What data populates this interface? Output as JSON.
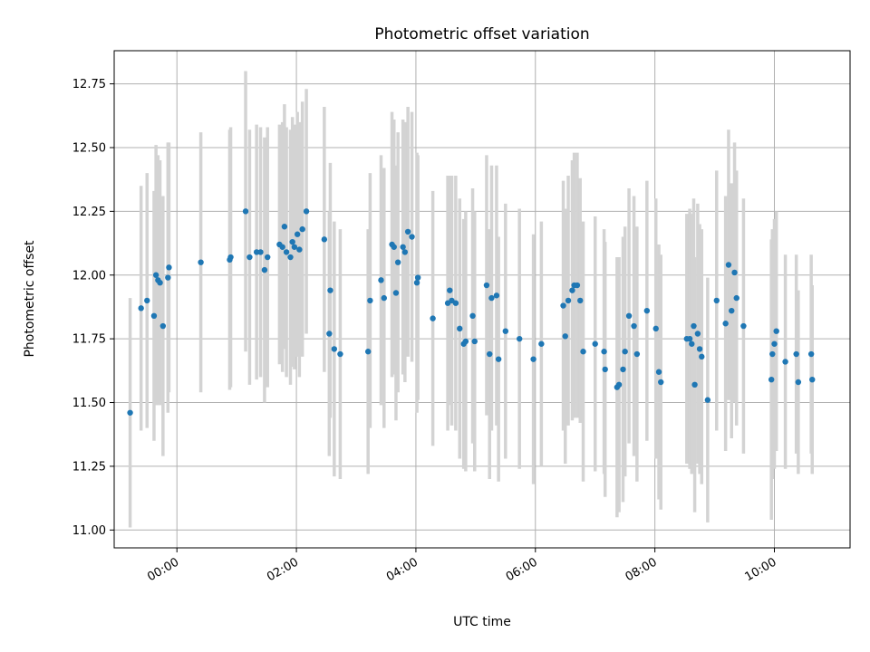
{
  "chart_data": {
    "type": "scatter",
    "title": "Photometric offset variation",
    "xlabel": "UTC time",
    "ylabel": "Photometric offset",
    "x_axis_type": "time",
    "xlim": [
      "-01:03",
      "11:16"
    ],
    "ylim": [
      10.93,
      12.88
    ],
    "x_tick_labels": [
      "00:00",
      "02:00",
      "04:00",
      "06:00",
      "08:00",
      "10:00"
    ],
    "y_ticks": [
      11.0,
      11.25,
      11.5,
      11.75,
      12.0,
      12.25,
      12.5,
      12.75
    ],
    "y_tick_labels": [
      "11.00",
      "11.25",
      "11.50",
      "11.75",
      "12.00",
      "12.25",
      "12.50",
      "12.75"
    ],
    "grid": true,
    "colors": {
      "points": "#1f77b4",
      "errorbars": "#d3d3d3",
      "grid": "#b0b0b0"
    },
    "points": [
      {
        "x": "-00:47",
        "y": 11.46,
        "err": 0.45
      },
      {
        "x": "-00:36",
        "y": 11.87,
        "err": 0.48
      },
      {
        "x": "-00:30",
        "y": 11.9,
        "err": 0.5
      },
      {
        "x": "-00:23",
        "y": 11.84,
        "err": 0.49
      },
      {
        "x": "-00:21",
        "y": 12.0,
        "err": 0.51
      },
      {
        "x": "-00:19",
        "y": 11.98,
        "err": 0.49
      },
      {
        "x": "-00:17",
        "y": 11.97,
        "err": 0.48
      },
      {
        "x": "-00:14",
        "y": 11.8,
        "err": 0.51
      },
      {
        "x": "-00:09",
        "y": 11.99,
        "err": 0.53
      },
      {
        "x": "-00:08",
        "y": 12.03,
        "err": 0.49
      },
      {
        "x": "00:24",
        "y": 12.05,
        "err": 0.51
      },
      {
        "x": "00:53",
        "y": 12.06,
        "err": 0.51
      },
      {
        "x": "00:54",
        "y": 12.07,
        "err": 0.51
      },
      {
        "x": "01:09",
        "y": 12.25,
        "err": 0.55
      },
      {
        "x": "01:13",
        "y": 12.07,
        "err": 0.5
      },
      {
        "x": "01:20",
        "y": 12.09,
        "err": 0.5
      },
      {
        "x": "01:24",
        "y": 12.09,
        "err": 0.49
      },
      {
        "x": "01:28",
        "y": 12.02,
        "err": 0.52
      },
      {
        "x": "01:31",
        "y": 12.07,
        "err": 0.51
      },
      {
        "x": "01:43",
        "y": 12.12,
        "err": 0.47
      },
      {
        "x": "01:46",
        "y": 12.11,
        "err": 0.49
      },
      {
        "x": "01:48",
        "y": 12.19,
        "err": 0.48
      },
      {
        "x": "01:50",
        "y": 12.09,
        "err": 0.49
      },
      {
        "x": "01:54",
        "y": 12.07,
        "err": 0.5
      },
      {
        "x": "01:56",
        "y": 12.13,
        "err": 0.49
      },
      {
        "x": "01:58",
        "y": 12.11,
        "err": 0.48
      },
      {
        "x": "02:01",
        "y": 12.16,
        "err": 0.48
      },
      {
        "x": "02:03",
        "y": 12.1,
        "err": 0.5
      },
      {
        "x": "02:06",
        "y": 12.18,
        "err": 0.5
      },
      {
        "x": "02:10",
        "y": 12.25,
        "err": 0.48
      },
      {
        "x": "02:28",
        "y": 12.14,
        "err": 0.52
      },
      {
        "x": "02:33",
        "y": 11.77,
        "err": 0.48
      },
      {
        "x": "02:34",
        "y": 11.94,
        "err": 0.5
      },
      {
        "x": "02:38",
        "y": 11.71,
        "err": 0.5
      },
      {
        "x": "02:44",
        "y": 11.69,
        "err": 0.49
      },
      {
        "x": "03:12",
        "y": 11.7,
        "err": 0.48
      },
      {
        "x": "03:14",
        "y": 11.9,
        "err": 0.5
      },
      {
        "x": "03:25",
        "y": 11.98,
        "err": 0.49
      },
      {
        "x": "03:28",
        "y": 11.91,
        "err": 0.51
      },
      {
        "x": "03:36",
        "y": 12.12,
        "err": 0.52
      },
      {
        "x": "03:38",
        "y": 12.11,
        "err": 0.5
      },
      {
        "x": "03:40",
        "y": 11.93,
        "err": 0.5
      },
      {
        "x": "03:42",
        "y": 12.05,
        "err": 0.51
      },
      {
        "x": "03:47",
        "y": 12.11,
        "err": 0.5
      },
      {
        "x": "03:49",
        "y": 12.09,
        "err": 0.51
      },
      {
        "x": "03:52",
        "y": 12.17,
        "err": 0.49
      },
      {
        "x": "03:56",
        "y": 12.15,
        "err": 0.49
      },
      {
        "x": "04:01",
        "y": 11.97,
        "err": 0.51
      },
      {
        "x": "04:02",
        "y": 11.99,
        "err": 0.48
      },
      {
        "x": "04:17",
        "y": 11.83,
        "err": 0.5
      },
      {
        "x": "04:32",
        "y": 11.89,
        "err": 0.5
      },
      {
        "x": "04:34",
        "y": 11.94,
        "err": 0.45
      },
      {
        "x": "04:36",
        "y": 11.9,
        "err": 0.49
      },
      {
        "x": "04:40",
        "y": 11.89,
        "err": 0.5
      },
      {
        "x": "04:44",
        "y": 11.79,
        "err": 0.51
      },
      {
        "x": "04:48",
        "y": 11.73,
        "err": 0.49
      },
      {
        "x": "04:50",
        "y": 11.74,
        "err": 0.51
      },
      {
        "x": "04:57",
        "y": 11.84,
        "err": 0.5
      },
      {
        "x": "04:59",
        "y": 11.74,
        "err": 0.51
      },
      {
        "x": "05:11",
        "y": 11.96,
        "err": 0.51
      },
      {
        "x": "05:14",
        "y": 11.69,
        "err": 0.49
      },
      {
        "x": "05:16",
        "y": 11.91,
        "err": 0.52
      },
      {
        "x": "05:21",
        "y": 11.92,
        "err": 0.51
      },
      {
        "x": "05:23",
        "y": 11.67,
        "err": 0.48
      },
      {
        "x": "05:30",
        "y": 11.78,
        "err": 0.5
      },
      {
        "x": "05:44",
        "y": 11.75,
        "err": 0.51
      },
      {
        "x": "05:58",
        "y": 11.67,
        "err": 0.49
      },
      {
        "x": "06:06",
        "y": 11.73,
        "err": 0.48
      },
      {
        "x": "06:28",
        "y": 11.88,
        "err": 0.49
      },
      {
        "x": "06:30",
        "y": 11.76,
        "err": 0.5
      },
      {
        "x": "06:33",
        "y": 11.9,
        "err": 0.49
      },
      {
        "x": "06:37",
        "y": 11.94,
        "err": 0.51
      },
      {
        "x": "06:39",
        "y": 11.96,
        "err": 0.52
      },
      {
        "x": "06:42",
        "y": 11.96,
        "err": 0.52
      },
      {
        "x": "06:45",
        "y": 11.9,
        "err": 0.48
      },
      {
        "x": "06:48",
        "y": 11.7,
        "err": 0.51
      },
      {
        "x": "07:00",
        "y": 11.73,
        "err": 0.5
      },
      {
        "x": "07:09",
        "y": 11.7,
        "err": 0.48
      },
      {
        "x": "07:10",
        "y": 11.63,
        "err": 0.5
      },
      {
        "x": "07:22",
        "y": 11.56,
        "err": 0.51
      },
      {
        "x": "07:24",
        "y": 11.57,
        "err": 0.5
      },
      {
        "x": "07:28",
        "y": 11.63,
        "err": 0.52
      },
      {
        "x": "07:30",
        "y": 11.7,
        "err": 0.49
      },
      {
        "x": "07:34",
        "y": 11.84,
        "err": 0.5
      },
      {
        "x": "07:39",
        "y": 11.8,
        "err": 0.51
      },
      {
        "x": "07:42",
        "y": 11.69,
        "err": 0.5
      },
      {
        "x": "07:52",
        "y": 11.86,
        "err": 0.51
      },
      {
        "x": "08:01",
        "y": 11.79,
        "err": 0.51
      },
      {
        "x": "08:04",
        "y": 11.62,
        "err": 0.5
      },
      {
        "x": "08:06",
        "y": 11.58,
        "err": 0.5
      },
      {
        "x": "08:32",
        "y": 11.75,
        "err": 0.49
      },
      {
        "x": "08:35",
        "y": 11.75,
        "err": 0.51
      },
      {
        "x": "08:37",
        "y": 11.73,
        "err": 0.51
      },
      {
        "x": "08:39",
        "y": 11.8,
        "err": 0.5
      },
      {
        "x": "08:40",
        "y": 11.57,
        "err": 0.5
      },
      {
        "x": "08:43",
        "y": 11.77,
        "err": 0.51
      },
      {
        "x": "08:45",
        "y": 11.71,
        "err": 0.49
      },
      {
        "x": "08:47",
        "y": 11.68,
        "err": 0.5
      },
      {
        "x": "08:53",
        "y": 11.51,
        "err": 0.48
      },
      {
        "x": "09:02",
        "y": 11.9,
        "err": 0.51
      },
      {
        "x": "09:11",
        "y": 11.81,
        "err": 0.5
      },
      {
        "x": "09:14",
        "y": 12.04,
        "err": 0.53
      },
      {
        "x": "09:17",
        "y": 11.86,
        "err": 0.5
      },
      {
        "x": "09:20",
        "y": 12.01,
        "err": 0.51
      },
      {
        "x": "09:22",
        "y": 11.91,
        "err": 0.5
      },
      {
        "x": "09:29",
        "y": 11.8,
        "err": 0.5
      },
      {
        "x": "09:57",
        "y": 11.59,
        "err": 0.55
      },
      {
        "x": "09:58",
        "y": 11.69,
        "err": 0.49
      },
      {
        "x": "10:00",
        "y": 11.73,
        "err": 0.49
      },
      {
        "x": "10:02",
        "y": 11.78,
        "err": 0.47
      },
      {
        "x": "10:11",
        "y": 11.66,
        "err": 0.42
      },
      {
        "x": "10:22",
        "y": 11.69,
        "err": 0.39
      },
      {
        "x": "10:24",
        "y": 11.58,
        "err": 0.36
      },
      {
        "x": "10:37",
        "y": 11.69,
        "err": 0.39
      },
      {
        "x": "10:38",
        "y": 11.59,
        "err": 0.37
      }
    ]
  }
}
